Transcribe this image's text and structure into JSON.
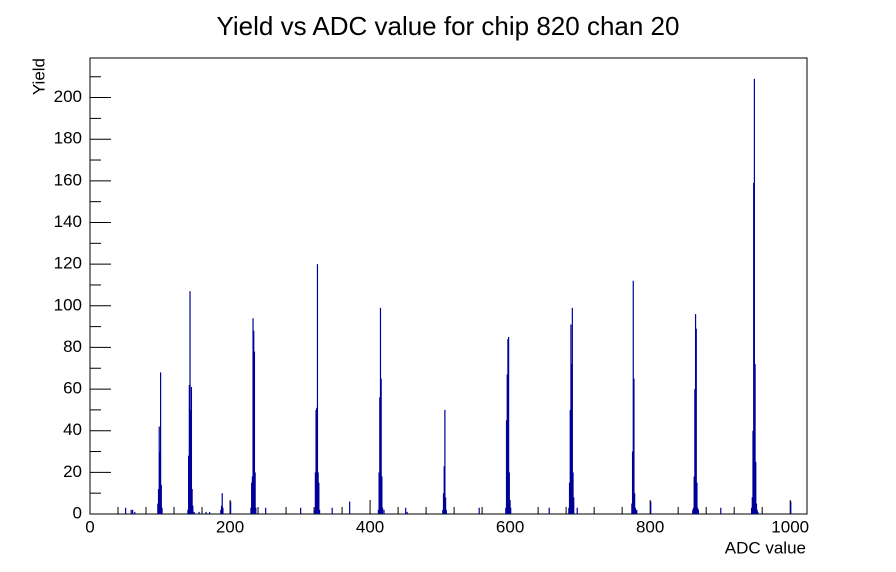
{
  "chart_data": {
    "type": "spike-histogram",
    "title": "Yield vs ADC value for chip 820 chan 20",
    "x_label": "ADC value",
    "y_label": "Yield",
    "color": "#000099",
    "xlim": [
      0,
      1024
    ],
    "ylim": [
      0,
      219
    ],
    "xticks": [
      0,
      200,
      400,
      600,
      800,
      1000
    ],
    "yticks": [
      0,
      20,
      40,
      60,
      80,
      100,
      120,
      140,
      160,
      180,
      200
    ],
    "x": [
      50,
      58,
      60,
      63,
      96,
      97,
      98,
      99,
      100,
      101,
      102,
      139,
      140,
      141,
      142,
      143,
      144,
      145,
      146,
      148,
      155,
      165,
      170,
      186,
      187,
      188,
      189,
      200,
      229,
      230,
      231,
      232,
      233,
      234,
      235,
      236,
      250,
      300,
      320,
      321,
      322,
      323,
      324,
      325,
      326,
      327,
      345,
      370,
      411,
      412,
      413,
      414,
      415,
      416,
      417,
      419,
      450,
      452,
      503,
      504,
      505,
      506,
      507,
      508,
      555,
      593,
      594,
      595,
      596,
      597,
      598,
      599,
      600,
      655,
      683,
      684,
      685,
      686,
      687,
      688,
      689,
      690,
      695,
      773,
      774,
      775,
      776,
      777,
      778,
      779,
      780,
      800,
      860,
      861,
      862,
      863,
      864,
      865,
      866,
      867,
      868,
      900,
      944,
      945,
      946,
      947,
      948,
      949,
      950,
      951,
      952,
      953,
      1000
    ],
    "values": [
      3,
      2,
      2,
      1,
      5,
      12,
      42,
      30,
      68,
      14,
      3,
      2,
      28,
      62,
      107,
      50,
      61,
      12,
      4,
      1,
      1,
      1,
      1,
      2,
      4,
      10,
      3,
      6,
      3,
      15,
      18,
      94,
      88,
      78,
      20,
      3,
      3,
      3,
      2,
      20,
      50,
      51,
      120,
      20,
      15,
      2,
      3,
      6,
      2,
      20,
      56,
      99,
      65,
      18,
      3,
      2,
      3,
      1,
      2,
      10,
      23,
      50,
      8,
      2,
      3,
      3,
      45,
      67,
      84,
      85,
      20,
      6,
      3,
      3,
      3,
      15,
      50,
      91,
      72,
      99,
      20,
      8,
      3,
      5,
      30,
      112,
      65,
      10,
      3,
      2,
      2,
      6,
      2,
      3,
      18,
      60,
      96,
      89,
      15,
      3,
      2,
      3,
      3,
      8,
      40,
      159,
      209,
      72,
      25,
      5,
      2,
      1,
      6
    ]
  }
}
